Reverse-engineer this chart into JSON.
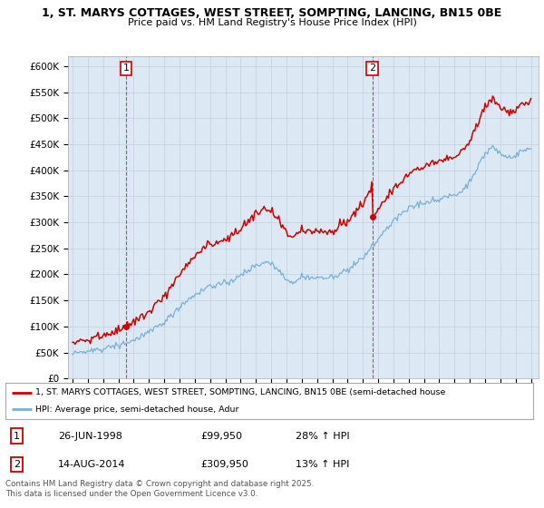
{
  "title_line1": "1, ST. MARYS COTTAGES, WEST STREET, SOMPTING, LANCING, BN15 0BE",
  "title_line2": "Price paid vs. HM Land Registry's House Price Index (HPI)",
  "ylim": [
    0,
    620000
  ],
  "yticks": [
    0,
    50000,
    100000,
    150000,
    200000,
    250000,
    300000,
    350000,
    400000,
    450000,
    500000,
    550000,
    600000
  ],
  "ytick_labels": [
    "£0",
    "£50K",
    "£100K",
    "£150K",
    "£200K",
    "£250K",
    "£300K",
    "£350K",
    "£400K",
    "£450K",
    "£500K",
    "£550K",
    "£600K"
  ],
  "hpi_color": "#7bafd4",
  "price_color": "#cc0000",
  "chart_bg": "#dce9f5",
  "transaction1_date": 1998.49,
  "transaction1_price": 99950,
  "transaction1_label": "1",
  "transaction2_date": 2014.62,
  "transaction2_price": 309950,
  "transaction2_label": "2",
  "legend_line1": "1, ST. MARYS COTTAGES, WEST STREET, SOMPTING, LANCING, BN15 0BE (semi-detached house",
  "legend_line2": "HPI: Average price, semi-detached house, Adur",
  "table_row1": [
    "1",
    "26-JUN-1998",
    "£99,950",
    "28% ↑ HPI"
  ],
  "table_row2": [
    "2",
    "14-AUG-2014",
    "£309,950",
    "13% ↑ HPI"
  ],
  "footer": "Contains HM Land Registry data © Crown copyright and database right 2025.\nThis data is licensed under the Open Government Licence v3.0.",
  "background_color": "#ffffff",
  "grid_color": "#c0d0e0",
  "xlim_min": 1994.7,
  "xlim_max": 2025.5
}
